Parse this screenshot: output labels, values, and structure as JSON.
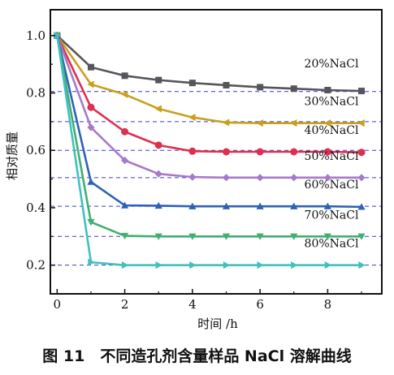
{
  "caption": "图 11　不同造孔剂含量样品 NaCl 溶解曲线",
  "chart_data": {
    "type": "line",
    "xlabel": "时间 /h",
    "ylabel": "相对质量",
    "xlim": [
      -0.2,
      9.6
    ],
    "ylim": [
      0.1,
      1.09
    ],
    "xticks": [
      0,
      2,
      4,
      6,
      8
    ],
    "yticks": [
      0.2,
      0.4,
      0.6,
      0.8,
      1.0
    ],
    "ytick_labels": [
      "0.2",
      "0.4",
      "0.6",
      "0.8",
      "1.0"
    ],
    "reference_lines": [
      0.805,
      0.7,
      0.6,
      0.505,
      0.405,
      0.3,
      0.2
    ],
    "reference_line_color": "#3a3acc",
    "x": [
      0,
      1,
      2,
      3,
      4,
      5,
      6,
      7,
      8,
      9
    ],
    "series": [
      {
        "label": "20%NaCl",
        "color": "#55555c",
        "marker": "square",
        "values": [
          1.0,
          0.89,
          0.86,
          0.845,
          0.835,
          0.827,
          0.82,
          0.815,
          0.81,
          0.807
        ]
      },
      {
        "label": "30%NaCl",
        "color": "#c8a020",
        "marker": "triangle-left",
        "values": [
          1.0,
          0.83,
          0.795,
          0.745,
          0.715,
          0.697,
          0.695,
          0.695,
          0.695,
          0.695
        ]
      },
      {
        "label": "40%NaCl",
        "color": "#dd3050",
        "marker": "circle",
        "values": [
          1.0,
          0.75,
          0.665,
          0.618,
          0.597,
          0.595,
          0.595,
          0.595,
          0.595,
          0.593
        ]
      },
      {
        "label": "50%NaCl",
        "color": "#a67ac8",
        "marker": "diamond",
        "values": [
          1.0,
          0.68,
          0.565,
          0.518,
          0.507,
          0.505,
          0.505,
          0.505,
          0.505,
          0.505
        ]
      },
      {
        "label": "60%NaCl",
        "color": "#3060b8",
        "marker": "triangle-up",
        "values": [
          1.0,
          0.49,
          0.408,
          0.407,
          0.405,
          0.405,
          0.405,
          0.405,
          0.405,
          0.403
        ]
      },
      {
        "label": "70%NaCl",
        "color": "#40b070",
        "marker": "triangle-down",
        "values": [
          1.0,
          0.35,
          0.302,
          0.3,
          0.3,
          0.3,
          0.3,
          0.3,
          0.3,
          0.3
        ]
      },
      {
        "label": "80%NaCl",
        "color": "#40c0c0",
        "marker": "triangle-right",
        "values": [
          1.0,
          0.21,
          0.2,
          0.2,
          0.2,
          0.2,
          0.2,
          0.2,
          0.2,
          0.2
        ]
      }
    ]
  }
}
